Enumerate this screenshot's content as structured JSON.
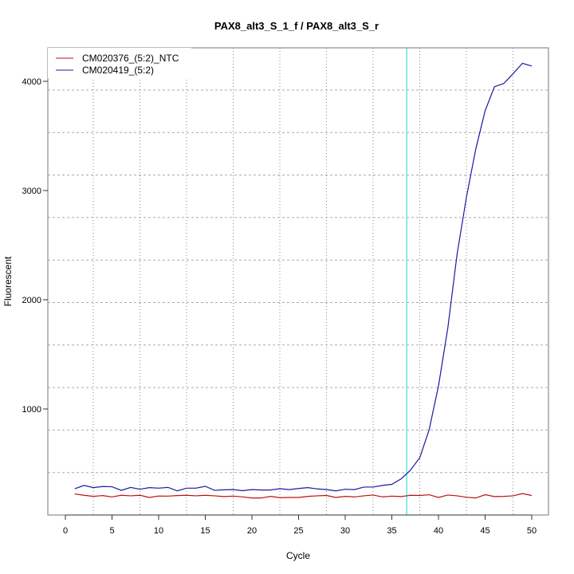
{
  "chart_data": {
    "type": "line",
    "title": "PAX8_alt3_S_1_f / PAX8_alt3_S_r",
    "xlabel": "Cycle",
    "ylabel": "Fluorescent",
    "xlim": [
      0,
      50
    ],
    "ylim": [
      120,
      4250
    ],
    "xticks": [
      0,
      5,
      10,
      15,
      20,
      25,
      30,
      35,
      40,
      45,
      50
    ],
    "yticks": [
      1000,
      2000,
      3000,
      4000
    ],
    "grid": true,
    "legend_position": "top-left",
    "threshold_cycle": 36.6,
    "threshold_color": "#66e6e6",
    "x": [
      1,
      2,
      3,
      4,
      5,
      6,
      7,
      8,
      9,
      10,
      11,
      12,
      13,
      14,
      15,
      16,
      17,
      18,
      19,
      20,
      21,
      22,
      23,
      24,
      25,
      26,
      27,
      28,
      29,
      30,
      31,
      32,
      33,
      34,
      35,
      36,
      37,
      38,
      39,
      40,
      41,
      42,
      43,
      44,
      45,
      46,
      47,
      48,
      49,
      50
    ],
    "series": [
      {
        "name": "CM020376_(5:2)_NTC",
        "color": "#bb1111",
        "values": [
          222,
          210,
          200,
          207,
          195,
          210,
          205,
          210,
          190,
          203,
          202,
          207,
          210,
          205,
          210,
          205,
          198,
          202,
          195,
          185,
          185,
          200,
          188,
          190,
          190,
          200,
          205,
          208,
          190,
          200,
          195,
          205,
          212,
          195,
          202,
          198,
          210,
          208,
          215,
          190,
          212,
          205,
          192,
          185,
          215,
          198,
          200,
          205,
          225,
          208
        ]
      },
      {
        "name": "CM020419_(5:2)",
        "color": "#1a1aa0",
        "values": [
          270,
          300,
          280,
          290,
          288,
          255,
          282,
          265,
          280,
          275,
          282,
          250,
          275,
          275,
          292,
          255,
          260,
          262,
          252,
          262,
          258,
          258,
          270,
          262,
          272,
          280,
          268,
          262,
          250,
          265,
          262,
          285,
          285,
          300,
          310,
          360,
          440,
          555,
          810,
          1210,
          1740,
          2420,
          2940,
          3380,
          3730,
          3950,
          3980,
          4070,
          4165,
          4140
        ]
      }
    ]
  }
}
